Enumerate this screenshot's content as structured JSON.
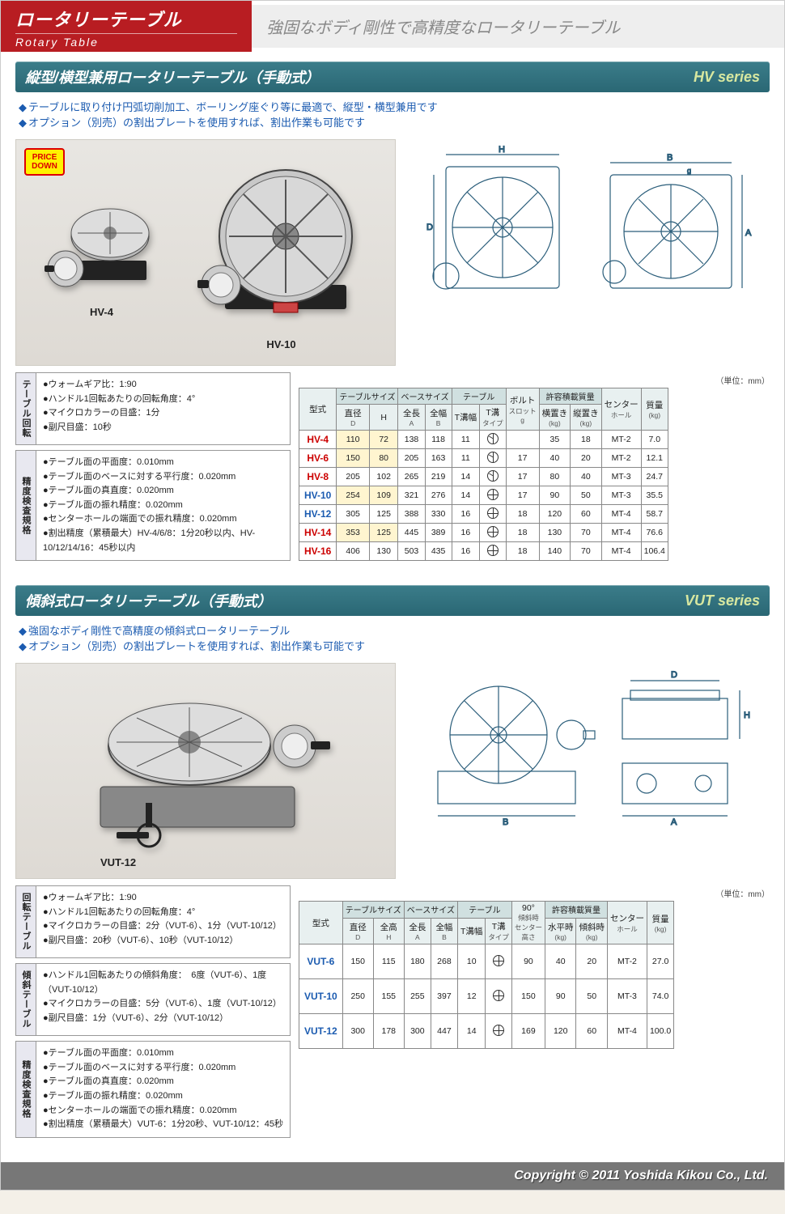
{
  "header": {
    "title_jp": "ロータリーテーブル",
    "title_en": "Rotary Table",
    "tagline": "強固なボディ剛性で高精度なロータリーテーブル"
  },
  "hv": {
    "section_title": "縦型/横型兼用ロータリーテーブル（手動式）",
    "series": "HV series",
    "bullets": [
      "テーブルに取り付け円弧切削加工、ボーリング座ぐり等に最適で、縦型・横型兼用です",
      "オプション（別売）の割出プレートを使用すれば、割出作業も可能です"
    ],
    "badge": "PRICE DOWN",
    "photo_labels": [
      "HV-4",
      "HV-10"
    ],
    "unit": "（単位：mm）",
    "spec_rotation_label": "テーブル回転",
    "spec_rotation": [
      "ウォームギア比：1:90",
      "ハンドル1回転あたりの回転角度：4°",
      "マイクロカラーの目盛：1分",
      "副尺目盛：10秒"
    ],
    "spec_accuracy_label": "精度検査規格",
    "spec_accuracy": [
      "テーブル面の平面度：0.010mm",
      "テーブル面のベースに対する平行度：0.020mm",
      "テーブル面の真直度：0.020mm",
      "テーブル面の振れ精度：0.020mm",
      "センターホールの端面での振れ精度：0.020mm",
      "割出精度（累積最大）HV-4/6/8：1分20秒以内、HV-10/12/14/16：45秒以内"
    ],
    "table": {
      "head_model": "型式",
      "grp1": "テーブルサイズ",
      "h1a": "直径",
      "h1a_s": "D",
      "h1b": "H",
      "grp2": "ベースサイズ",
      "h2a": "全長",
      "h2a_s": "A",
      "h2b": "全幅",
      "h2b_s": "B",
      "grp3": "テーブル",
      "h3a": "T溝幅",
      "h3b": "T溝",
      "h3b_s": "タイプ",
      "h4": "ボルト",
      "h4_s": "スロット",
      "h4_s2": "g",
      "grp5": "許容積載質量",
      "h5a": "横置き",
      "h5a_s": "(kg)",
      "h5b": "縦置き",
      "h5b_s": "(kg)",
      "h6": "センター",
      "h6_s": "ホール",
      "h7": "質量",
      "h7_s": "(kg)",
      "rows": [
        {
          "m": "HV-4",
          "d": "110",
          "h": "72",
          "a": "138",
          "b": "118",
          "tw": "11",
          "tt": "s3",
          "g": "",
          "hw": "35",
          "vw": "18",
          "ch": "MT-2",
          "wt": "7.0",
          "hl": [
            "d",
            "h"
          ]
        },
        {
          "m": "HV-6",
          "d": "150",
          "h": "80",
          "a": "205",
          "b": "163",
          "tw": "11",
          "tt": "s3",
          "g": "17",
          "hw": "40",
          "vw": "20",
          "ch": "MT-2",
          "wt": "12.1",
          "hl": [
            "d",
            "h"
          ]
        },
        {
          "m": "HV-8",
          "d": "205",
          "h": "102",
          "a": "265",
          "b": "219",
          "tw": "14",
          "tt": "s3",
          "g": "17",
          "hw": "80",
          "vw": "40",
          "ch": "MT-3",
          "wt": "24.7"
        },
        {
          "m": "HV-10",
          "d": "254",
          "h": "109",
          "a": "321",
          "b": "276",
          "tw": "14",
          "tt": "s6",
          "g": "17",
          "hw": "90",
          "vw": "50",
          "ch": "MT-3",
          "wt": "35.5",
          "blue": true,
          "hl": [
            "d",
            "h"
          ]
        },
        {
          "m": "HV-12",
          "d": "305",
          "h": "125",
          "a": "388",
          "b": "330",
          "tw": "16",
          "tt": "s6",
          "g": "18",
          "hw": "120",
          "vw": "60",
          "ch": "MT-4",
          "wt": "58.7",
          "blue": true
        },
        {
          "m": "HV-14",
          "d": "353",
          "h": "125",
          "a": "445",
          "b": "389",
          "tw": "16",
          "tt": "s6",
          "g": "18",
          "hw": "130",
          "vw": "70",
          "ch": "MT-4",
          "wt": "76.6",
          "hl": [
            "d",
            "h"
          ]
        },
        {
          "m": "HV-16",
          "d": "406",
          "h": "130",
          "a": "503",
          "b": "435",
          "tw": "16",
          "tt": "s6",
          "g": "18",
          "hw": "140",
          "vw": "70",
          "ch": "MT-4",
          "wt": "106.4"
        }
      ]
    }
  },
  "vut": {
    "section_title": "傾斜式ロータリーテーブル（手動式）",
    "series": "VUT series",
    "bullets": [
      "強固なボディ剛性で高精度の傾斜式ロータリーテーブル",
      "オプション（別売）の割出プレートを使用すれば、割出作業も可能です"
    ],
    "photo_label": "VUT-12",
    "unit": "（単位：mm）",
    "spec_rotation_label": "回転テーブル",
    "spec_rotation": [
      "ウォームギア比：1:90",
      "ハンドル1回転あたりの回転角度：4°",
      "マイクロカラーの目盛：2分（VUT-6）、1分（VUT-10/12）",
      "副尺目盛：20秒（VUT-6）、10秒（VUT-10/12）"
    ],
    "spec_tilt_label": "傾斜テーブル",
    "spec_tilt": [
      "ハンドル1回転あたりの傾斜角度：　6度（VUT-6）、1度（VUT-10/12）",
      "マイクロカラーの目盛：5分（VUT-6）、1度（VUT-10/12）",
      "副尺目盛：1分（VUT-6）、2分（VUT-10/12）"
    ],
    "spec_accuracy_label": "精度検査規格",
    "spec_accuracy": [
      "テーブル面の平面度：0.010mm",
      "テーブル面のベースに対する平行度：0.020mm",
      "テーブル面の真直度：0.020mm",
      "テーブル面の振れ精度：0.020mm",
      "センターホールの端面での振れ精度：0.020mm",
      "割出精度（累積最大）VUT-6：1分20秒、VUT-10/12：45秒"
    ],
    "table": {
      "head_model": "型式",
      "grp1": "テーブルサイズ",
      "h1a": "直径",
      "h1a_s": "D",
      "h1b": "全高",
      "h1b_s": "H",
      "grp2": "ベースサイズ",
      "h2a": "全長",
      "h2a_s": "A",
      "h2b": "全幅",
      "h2b_s": "B",
      "grp3": "テーブル",
      "h3a": "T溝幅",
      "h3b": "T溝",
      "h3b_s": "タイプ",
      "h4": "90°",
      "h4_s": "傾斜時",
      "h4_s2": "センター",
      "h4_s3": "高さ",
      "grp5": "許容積載質量",
      "h5a": "水平時",
      "h5a_s": "(kg)",
      "h5b": "傾斜時",
      "h5b_s": "(kg)",
      "h6": "センター",
      "h6_s": "ホール",
      "h7": "質量",
      "h7_s": "(kg)",
      "rows": [
        {
          "m": "VUT-6",
          "d": "150",
          "h": "115",
          "a": "180",
          "b": "268",
          "tw": "10",
          "tt": "s6",
          "ch90": "90",
          "hw": "40",
          "vw": "20",
          "ch": "MT-2",
          "wt": "27.0"
        },
        {
          "m": "VUT-10",
          "d": "250",
          "h": "155",
          "a": "255",
          "b": "397",
          "tw": "12",
          "tt": "s6",
          "ch90": "150",
          "hw": "90",
          "vw": "50",
          "ch": "MT-3",
          "wt": "74.0"
        },
        {
          "m": "VUT-12",
          "d": "300",
          "h": "178",
          "a": "300",
          "b": "447",
          "tw": "14",
          "tt": "s6",
          "ch90": "169",
          "hw": "120",
          "vw": "60",
          "ch": "MT-4",
          "wt": "100.0"
        }
      ]
    }
  },
  "footer": "Copyright © 2011 Yoshida Kikou Co., Ltd."
}
